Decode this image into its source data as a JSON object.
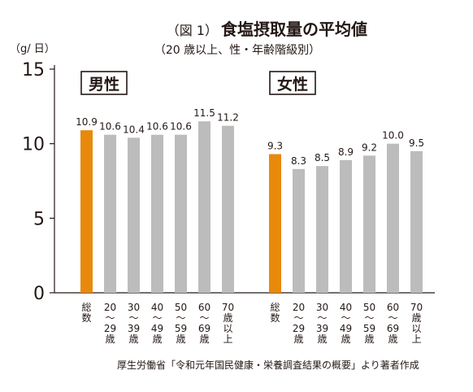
{
  "chart_data": {
    "type": "bar",
    "title_prefix": "（図 1）",
    "title": "食塩摂取量の平均値",
    "subtitle": "（20 歳以上、性・年齢階級別）",
    "ylabel": "（g/ 日）",
    "ylim": [
      0,
      15
    ],
    "yticks": [
      0,
      5,
      10,
      15
    ],
    "grid": false,
    "source": "厚生労働省「令和元年国民健康・栄養調査結果の概要」より著者作成",
    "highlight_color": "#e8890c",
    "bar_color": "#bcbcbc",
    "categories": [
      "総数",
      "20〜29歳",
      "30〜39歳",
      "40〜49歳",
      "50〜59歳",
      "60〜69歳",
      "70歳以上"
    ],
    "category_labels": [
      [
        "総",
        "数"
      ],
      [
        "20",
        "〜",
        "29",
        "歳"
      ],
      [
        "30",
        "〜",
        "39",
        "歳"
      ],
      [
        "40",
        "〜",
        "49",
        "歳"
      ],
      [
        "50",
        "〜",
        "59",
        "歳"
      ],
      [
        "60",
        "〜",
        "69",
        "歳"
      ],
      [
        "70",
        "歳",
        "以",
        "上"
      ]
    ],
    "series": [
      {
        "name": "男性",
        "values": [
          10.9,
          10.6,
          10.4,
          10.6,
          10.6,
          11.5,
          11.2
        ]
      },
      {
        "name": "女性",
        "values": [
          9.3,
          8.3,
          8.5,
          8.9,
          9.2,
          10.0,
          9.5
        ]
      }
    ]
  }
}
